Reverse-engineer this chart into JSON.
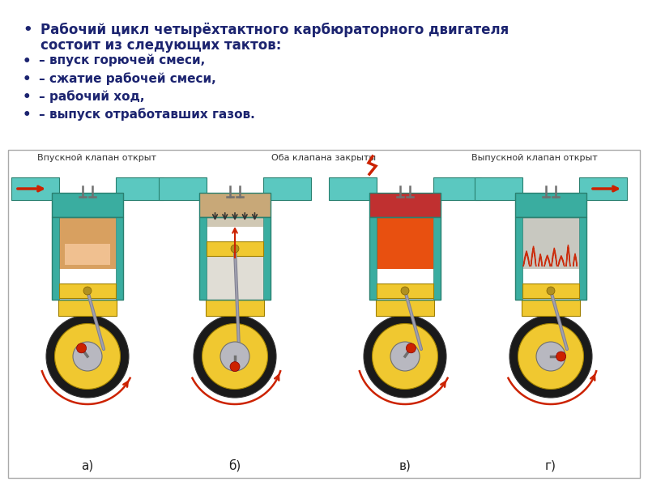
{
  "background_color": "#ffffff",
  "text_color": "#1c2470",
  "bullet_main_line1": "Рабочий цикл четырёхтактного карбюраторного двигателя",
  "bullet_main_line2": "состоит из следующих тактов:",
  "bullet_items": [
    "– впуск горючей смеси,",
    "– сжатие рабочей смеси,",
    "– рабочий ход,",
    "– выпуск отработавших газов."
  ],
  "image_labels_top": [
    "Впускной клапан открыт",
    "Оба клапана закрыты",
    "Выпускной клапан открыт"
  ],
  "image_labels_bottom": [
    "а)",
    "б)",
    "в)",
    "г)"
  ],
  "figsize": [
    8.0,
    6.0
  ],
  "dpi": 100,
  "bullet_symbol": "•",
  "teal": "#3aada0",
  "teal_dark": "#2a8070",
  "yellow": "#f0c830",
  "silver": "#b8b8c0",
  "silver_light": "#d8d8e0",
  "red": "#cc2200",
  "orange": "#e86010",
  "tan": "#c8a878",
  "black_tire": "#1a1a1a",
  "gray_dark": "#606060",
  "gray_mid": "#909090",
  "blue_pipe": "#5bc8c0"
}
